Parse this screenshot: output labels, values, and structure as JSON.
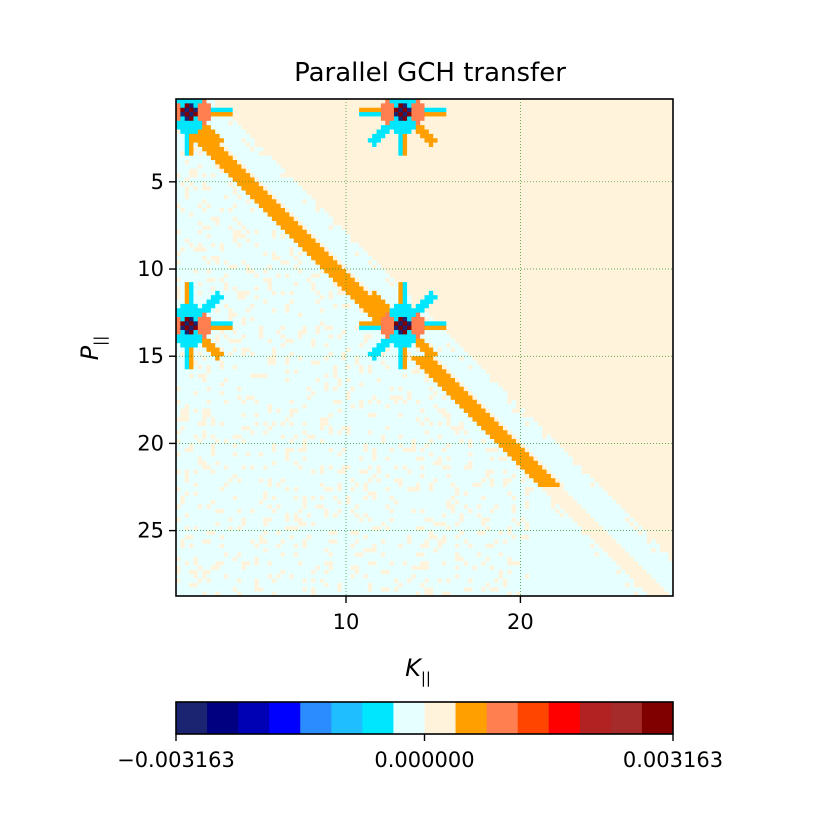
{
  "chart_data": {
    "type": "heatmap",
    "title": "Parallel GCH transfer",
    "xlabel": "K",
    "xlabel_subscript": "||",
    "ylabel": "P",
    "ylabel_subscript": "||",
    "xlim": [
      0.25,
      28.75
    ],
    "ylim": [
      28.75,
      0.25
    ],
    "xticks": [
      10,
      20
    ],
    "yticks": [
      5,
      10,
      15,
      20,
      25
    ],
    "grid": true,
    "grid_color": "#2a8c2a",
    "colorbar": {
      "orientation": "horizontal",
      "placement": "bottom",
      "min": -0.003163,
      "max": 0.003163,
      "tick_values": [
        -0.003163,
        0.0,
        0.003163
      ],
      "tick_labels": [
        "−0.003163",
        "0.000000",
        "0.003163"
      ],
      "colors": [
        "#1a2470",
        "#000080",
        "#0000b4",
        "#0000ff",
        "#2a8cff",
        "#1ebeff",
        "#00e6ff",
        "#e6ffff",
        "#fff3dc",
        "#ff9f00",
        "#ff7f50",
        "#ff4500",
        "#ff0000",
        "#b22222",
        "#a52a2a",
        "#800000"
      ]
    },
    "grid_size": 114,
    "cell_step": 0.25,
    "features": {
      "anti_diagonal_offset_cells": -4,
      "lower_band_value": 0.0003,
      "upper_band_value": -0.0003,
      "hotspots": [
        {
          "k": 1,
          "p": 1,
          "strength": 0.003163
        },
        {
          "k": 13.25,
          "p": 1,
          "strength": 0.003163
        },
        {
          "k": 1,
          "p": 13.25,
          "strength": 0.003163
        },
        {
          "k": 13.25,
          "p": 13.25,
          "strength": 0.003163
        }
      ]
    }
  }
}
